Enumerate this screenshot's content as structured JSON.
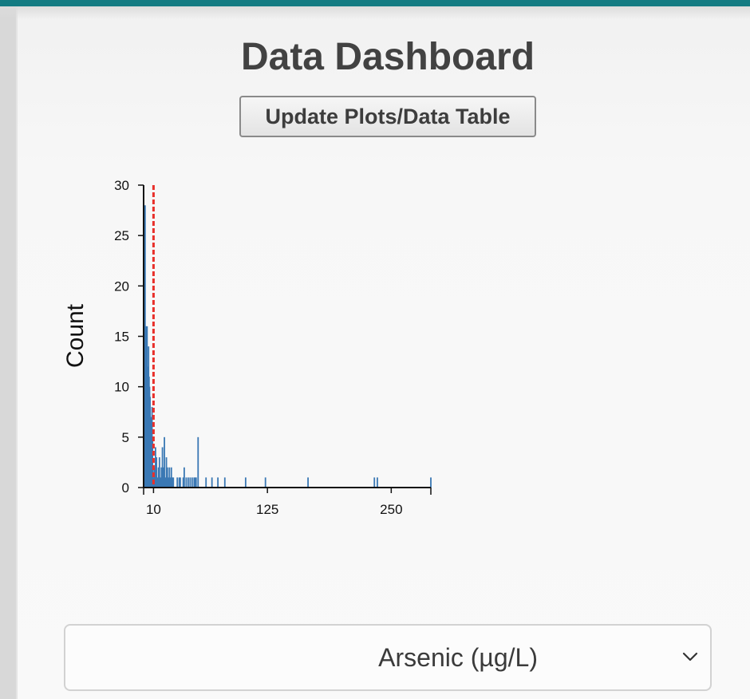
{
  "header": {
    "title": "Data Dashboard",
    "update_button_label": "Update Plots/Data Table"
  },
  "colors": {
    "topbar": "#137b82",
    "bar_fill": "#3a78b4",
    "threshold_line": "#e8302b"
  },
  "chart_data": {
    "type": "bar",
    "ylabel": "Count",
    "xlabel": "",
    "x_ticks": [
      10,
      125,
      250
    ],
    "y_ticks": [
      0,
      5,
      10,
      15,
      20,
      25,
      30
    ],
    "xlim": [
      0,
      290
    ],
    "ylim": [
      0,
      30
    ],
    "threshold": {
      "x": 10,
      "style": "dashed"
    },
    "bins": [
      {
        "x": 0.5,
        "count": 25
      },
      {
        "x": 1,
        "count": 23
      },
      {
        "x": 1.5,
        "count": 28
      },
      {
        "x": 2,
        "count": 12
      },
      {
        "x": 2.5,
        "count": 16
      },
      {
        "x": 3,
        "count": 9
      },
      {
        "x": 3.5,
        "count": 16
      },
      {
        "x": 4,
        "count": 12
      },
      {
        "x": 4.5,
        "count": 10
      },
      {
        "x": 5,
        "count": 14
      },
      {
        "x": 5.5,
        "count": 11
      },
      {
        "x": 6,
        "count": 10
      },
      {
        "x": 6.5,
        "count": 9
      },
      {
        "x": 7,
        "count": 3
      },
      {
        "x": 7.5,
        "count": 7
      },
      {
        "x": 8,
        "count": 4
      },
      {
        "x": 8.5,
        "count": 8
      },
      {
        "x": 9,
        "count": 5
      },
      {
        "x": 9.5,
        "count": 2
      },
      {
        "x": 10.5,
        "count": 1
      },
      {
        "x": 11,
        "count": 2
      },
      {
        "x": 12,
        "count": 4
      },
      {
        "x": 13,
        "count": 3
      },
      {
        "x": 14,
        "count": 1
      },
      {
        "x": 15,
        "count": 2
      },
      {
        "x": 16,
        "count": 3
      },
      {
        "x": 17,
        "count": 1
      },
      {
        "x": 18,
        "count": 2
      },
      {
        "x": 19,
        "count": 4
      },
      {
        "x": 20,
        "count": 2
      },
      {
        "x": 21,
        "count": 5
      },
      {
        "x": 22,
        "count": 1
      },
      {
        "x": 23,
        "count": 3
      },
      {
        "x": 24,
        "count": 2
      },
      {
        "x": 25,
        "count": 1
      },
      {
        "x": 26,
        "count": 2
      },
      {
        "x": 27,
        "count": 1
      },
      {
        "x": 28,
        "count": 2
      },
      {
        "x": 29,
        "count": 1
      },
      {
        "x": 30,
        "count": 1
      },
      {
        "x": 34,
        "count": 1
      },
      {
        "x": 36,
        "count": 1
      },
      {
        "x": 37,
        "count": 1
      },
      {
        "x": 40,
        "count": 1
      },
      {
        "x": 41,
        "count": 2
      },
      {
        "x": 43,
        "count": 1
      },
      {
        "x": 45,
        "count": 1
      },
      {
        "x": 47,
        "count": 1
      },
      {
        "x": 49,
        "count": 1
      },
      {
        "x": 51,
        "count": 1
      },
      {
        "x": 52,
        "count": 1
      },
      {
        "x": 53,
        "count": 1
      },
      {
        "x": 55,
        "count": 5
      },
      {
        "x": 63,
        "count": 1
      },
      {
        "x": 69,
        "count": 1
      },
      {
        "x": 75,
        "count": 1
      },
      {
        "x": 82,
        "count": 1
      },
      {
        "x": 103,
        "count": 1
      },
      {
        "x": 123,
        "count": 1
      },
      {
        "x": 166,
        "count": 1
      },
      {
        "x": 233,
        "count": 1
      },
      {
        "x": 236,
        "count": 1
      },
      {
        "x": 290,
        "count": 1
      }
    ]
  },
  "variable_select": {
    "selected": "Arsenic (µg/L)"
  }
}
